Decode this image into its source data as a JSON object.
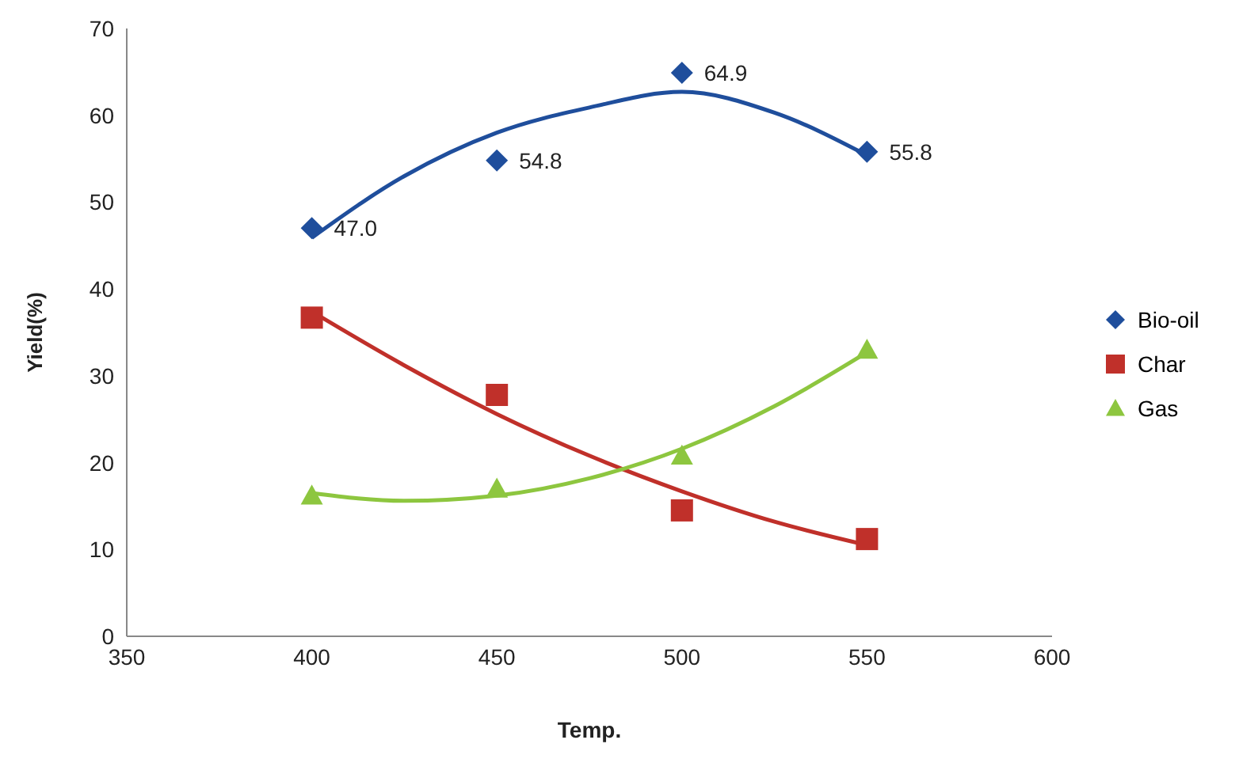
{
  "chart_data": {
    "type": "scatter",
    "xlabel": "Temp.",
    "ylabel": "Yield(%)",
    "xlim": [
      350,
      600
    ],
    "xticks": [
      350,
      400,
      450,
      500,
      550,
      600
    ],
    "ylim": [
      0,
      70
    ],
    "yticks": [
      0,
      10,
      20,
      30,
      40,
      50,
      60,
      70
    ],
    "grid": false,
    "legend": "right",
    "series": [
      {
        "name": "Bio-oil",
        "type": "scatter",
        "marker": "diamond",
        "color": "#1f4e9c",
        "x": [
          400,
          450,
          500,
          550
        ],
        "values": [
          47.0,
          54.8,
          64.9,
          55.8
        ],
        "value_labels": [
          "47.0",
          "54.8",
          "64.9",
          "55.8"
        ]
      },
      {
        "name": "Char",
        "type": "scatter",
        "marker": "square",
        "color": "#c0302a",
        "x": [
          400,
          450,
          500,
          550
        ],
        "values": [
          36.7,
          27.8,
          14.5,
          11.2
        ]
      },
      {
        "name": "Gas",
        "type": "scatter",
        "marker": "triangle",
        "color": "#8dc63f",
        "x": [
          400,
          450,
          500,
          550
        ],
        "values": [
          16.2,
          17.0,
          20.8,
          33.0
        ]
      },
      {
        "type": "line",
        "marker": "none",
        "color": "#1f4e9c",
        "x": [
          400,
          425,
          450,
          475,
          500,
          525,
          550
        ],
        "values": [
          45.9,
          53.0,
          58.0,
          60.9,
          62.7,
          60.3,
          55.4
        ]
      },
      {
        "type": "line",
        "marker": "none",
        "color": "#c0302a",
        "x": [
          400,
          425,
          450,
          475,
          500,
          525,
          550
        ],
        "values": [
          37.4,
          31.2,
          25.6,
          20.8,
          16.7,
          13.2,
          10.5
        ]
      },
      {
        "type": "line",
        "marker": "none",
        "color": "#8dc63f",
        "x": [
          400,
          425,
          450,
          475,
          500,
          525,
          550
        ],
        "values": [
          16.5,
          15.6,
          16.2,
          18.2,
          21.6,
          26.5,
          32.7
        ]
      }
    ]
  }
}
